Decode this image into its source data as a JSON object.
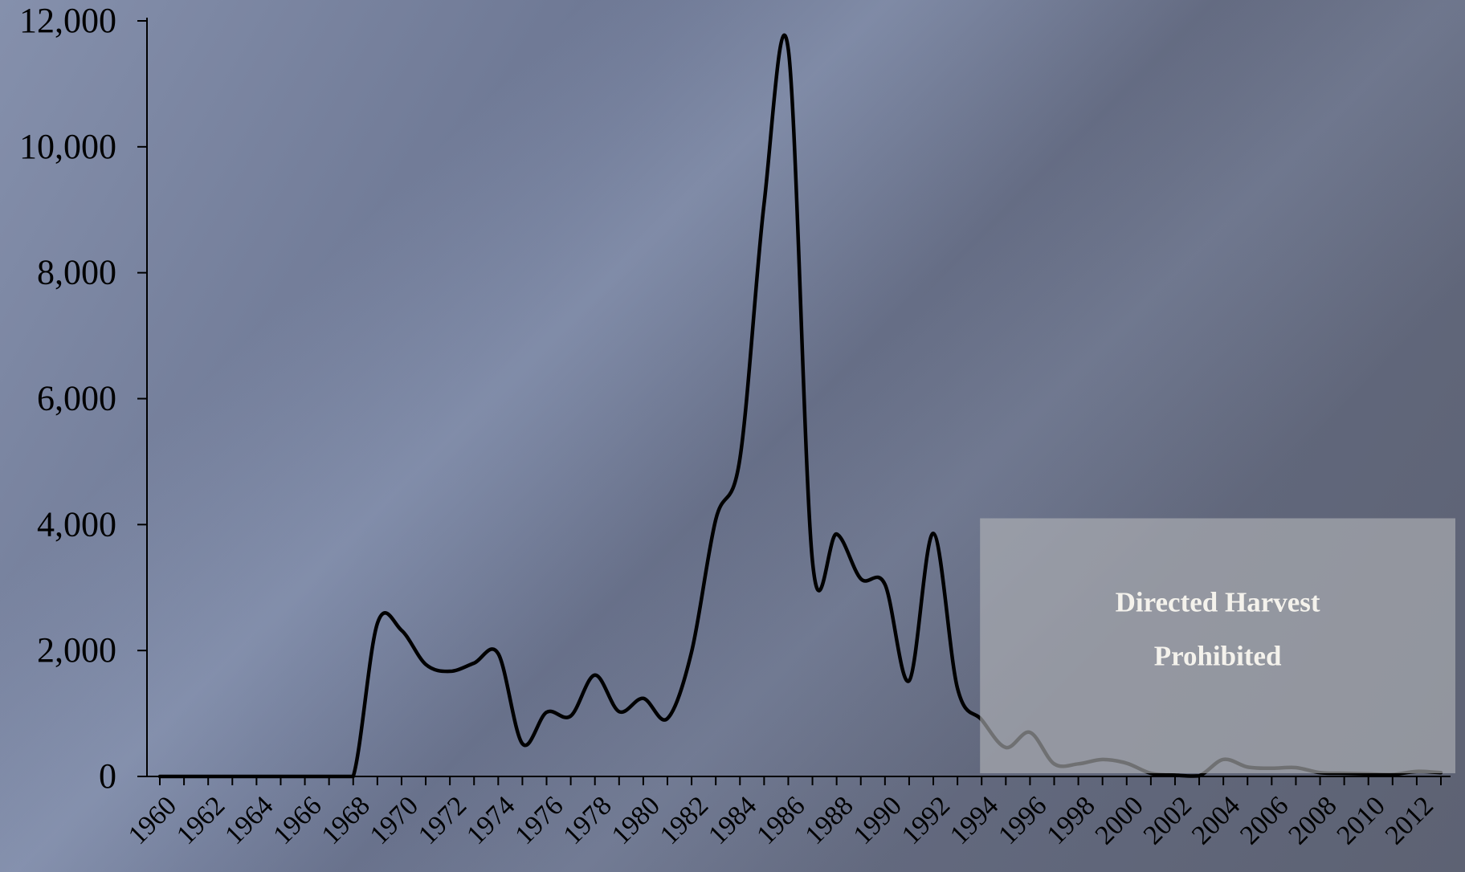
{
  "chart_data": {
    "type": "line",
    "title": "",
    "xlabel": "",
    "ylabel": "",
    "x": [
      1960,
      1961,
      1962,
      1963,
      1964,
      1965,
      1966,
      1967,
      1968,
      1969,
      1970,
      1971,
      1972,
      1973,
      1974,
      1975,
      1976,
      1977,
      1978,
      1979,
      1980,
      1981,
      1982,
      1983,
      1984,
      1985,
      1986,
      1987,
      1988,
      1989,
      1990,
      1991,
      1992,
      1993,
      1994,
      1995,
      1996,
      1997,
      1998,
      1999,
      2000,
      2001,
      2002,
      2003,
      2004,
      2005,
      2006,
      2007,
      2008,
      2009,
      2010,
      2011,
      2012,
      2013
    ],
    "series": [
      {
        "values": [
          0,
          0,
          0,
          0,
          0,
          0,
          0,
          0,
          0,
          2430,
          2320,
          1780,
          1670,
          1800,
          1950,
          520,
          1020,
          960,
          1610,
          1030,
          1240,
          920,
          1980,
          4080,
          5050,
          9100,
          11550,
          3420,
          3850,
          3140,
          3050,
          1520,
          3860,
          1400,
          900,
          460,
          700,
          200,
          200,
          270,
          210,
          50,
          20,
          10,
          270,
          150,
          130,
          140,
          60,
          50,
          40,
          30,
          80,
          60
        ]
      }
    ],
    "xticks": [
      "1960",
      "1962",
      "1964",
      "1966",
      "1968",
      "1970",
      "1972",
      "1974",
      "1976",
      "1978",
      "1980",
      "1982",
      "1984",
      "1986",
      "1988",
      "1990",
      "1992",
      "1994",
      "1996",
      "1998",
      "2000",
      "2002",
      "2004",
      "2006",
      "2008",
      "2010",
      "2012"
    ],
    "yticks": [
      "0",
      "2,000",
      "4,000",
      "6,000",
      "8,000",
      "10,000",
      "12,000"
    ],
    "ylim": [
      0,
      12000
    ],
    "xlim": [
      1960,
      2013
    ],
    "grid": false,
    "line_color": "#000000",
    "annotation": {
      "lines": [
        "Directed Harvest",
        "Prohibited"
      ],
      "x_range": [
        1994,
        2013
      ],
      "y_range": [
        0,
        4100
      ]
    }
  }
}
